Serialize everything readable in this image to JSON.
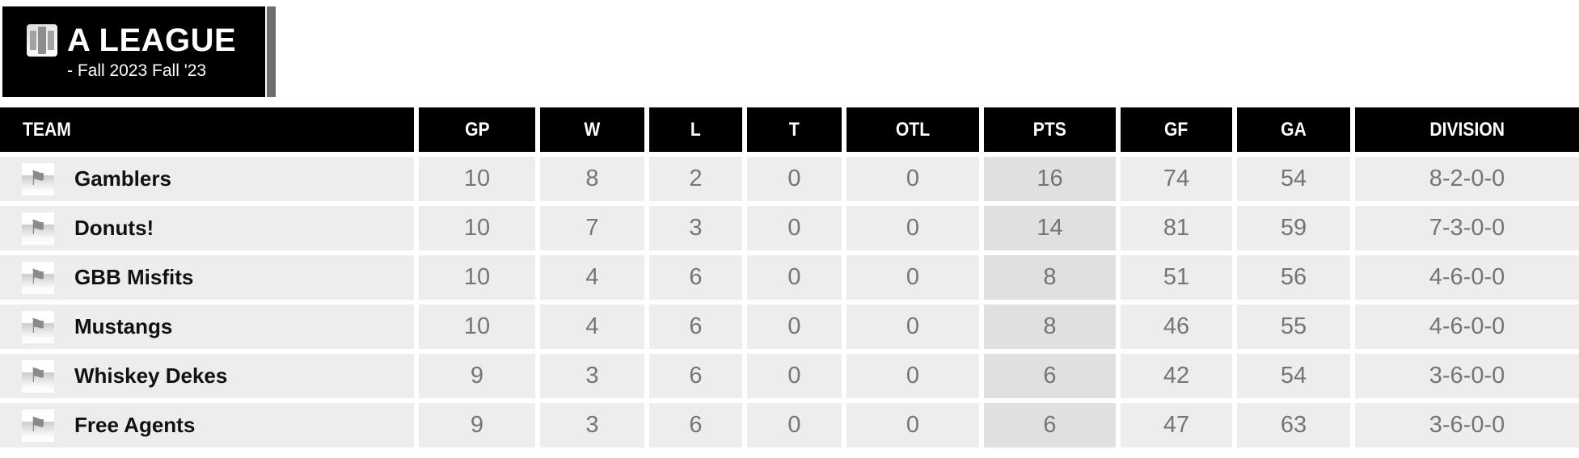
{
  "league": {
    "title": "A LEAGUE",
    "subtitle": "- Fall 2023 Fall '23",
    "icon": "stats-bars-icon"
  },
  "icons": {
    "team_logo_glyph": "⚑",
    "team_logo_name": "flag-icon"
  },
  "colors": {
    "header_bg": "#000000",
    "header_text": "#ffffff",
    "row_bg": "#ededed",
    "pts_highlight_bg": "#e0e0e0",
    "value_text": "#757575",
    "team_text": "#111111",
    "accent_bar": "#6e6e6e"
  },
  "table": {
    "columns": [
      "TEAM",
      "GP",
      "W",
      "L",
      "T",
      "OTL",
      "PTS",
      "GF",
      "GA",
      "DIVISION"
    ],
    "rows": [
      {
        "team": "Gamblers",
        "gp": "10",
        "w": "8",
        "l": "2",
        "t": "0",
        "otl": "0",
        "pts": "16",
        "gf": "74",
        "ga": "54",
        "division": "8-2-0-0"
      },
      {
        "team": "Donuts!",
        "gp": "10",
        "w": "7",
        "l": "3",
        "t": "0",
        "otl": "0",
        "pts": "14",
        "gf": "81",
        "ga": "59",
        "division": "7-3-0-0"
      },
      {
        "team": "GBB Misfits",
        "gp": "10",
        "w": "4",
        "l": "6",
        "t": "0",
        "otl": "0",
        "pts": "8",
        "gf": "51",
        "ga": "56",
        "division": "4-6-0-0"
      },
      {
        "team": "Mustangs",
        "gp": "10",
        "w": "4",
        "l": "6",
        "t": "0",
        "otl": "0",
        "pts": "8",
        "gf": "46",
        "ga": "55",
        "division": "4-6-0-0"
      },
      {
        "team": "Whiskey Dekes",
        "gp": "9",
        "w": "3",
        "l": "6",
        "t": "0",
        "otl": "0",
        "pts": "6",
        "gf": "42",
        "ga": "54",
        "division": "3-6-0-0"
      },
      {
        "team": "Free Agents",
        "gp": "9",
        "w": "3",
        "l": "6",
        "t": "0",
        "otl": "0",
        "pts": "6",
        "gf": "47",
        "ga": "63",
        "division": "3-6-0-0"
      }
    ]
  }
}
